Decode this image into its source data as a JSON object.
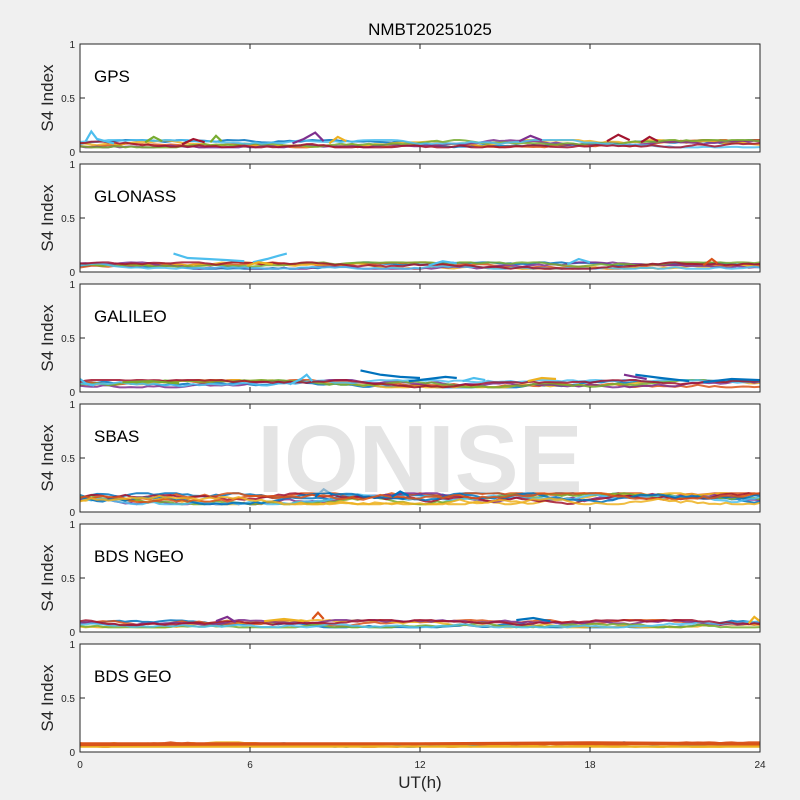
{
  "figure": {
    "title": "NMBT20251025",
    "watermark": "IONISE"
  },
  "chart_data": {
    "type": "line",
    "title": "NMBT20251025",
    "xlabel": "UT(h)",
    "ylabel": "S4 Index",
    "xlim": [
      0,
      24
    ],
    "ylim": [
      0,
      1
    ],
    "x_ticks": [
      0,
      6,
      12,
      18,
      24
    ],
    "y_ticks": [
      0,
      0.5,
      1
    ],
    "grid": false,
    "series_colors": [
      "#0072bd",
      "#d95319",
      "#edb120",
      "#7e2f8e",
      "#77ac30",
      "#4dbeee",
      "#a2142f"
    ],
    "panels": [
      {
        "label": "GPS",
        "description": "Many satellite tracks; S4 mostly 0.03-0.12",
        "tracks": [
          {
            "color": 5,
            "points": [
              [
                0.2,
                0.1
              ],
              [
                0.4,
                0.19
              ],
              [
                0.6,
                0.12
              ],
              [
                1.2,
                0.08
              ]
            ]
          },
          {
            "color": 4,
            "points": [
              [
                2.3,
                0.09
              ],
              [
                2.6,
                0.14
              ],
              [
                2.9,
                0.1
              ]
            ]
          },
          {
            "color": 6,
            "points": [
              [
                3.6,
                0.07
              ],
              [
                4.0,
                0.12
              ],
              [
                4.4,
                0.09
              ]
            ]
          },
          {
            "color": 4,
            "points": [
              [
                4.6,
                0.09
              ],
              [
                4.8,
                0.15
              ],
              [
                5.0,
                0.1
              ]
            ]
          },
          {
            "color": 3,
            "points": [
              [
                7.5,
                0.08
              ],
              [
                7.9,
                0.12
              ],
              [
                8.3,
                0.18
              ],
              [
                8.6,
                0.1
              ]
            ]
          },
          {
            "color": 2,
            "points": [
              [
                8.8,
                0.08
              ],
              [
                9.1,
                0.14
              ],
              [
                9.4,
                0.1
              ]
            ]
          },
          {
            "color": 3,
            "points": [
              [
                15.5,
                0.1
              ],
              [
                15.9,
                0.15
              ],
              [
                16.3,
                0.11
              ]
            ]
          },
          {
            "color": 6,
            "points": [
              [
                18.6,
                0.1
              ],
              [
                19.0,
                0.16
              ],
              [
                19.4,
                0.11
              ]
            ]
          },
          {
            "color": 6,
            "points": [
              [
                19.8,
                0.09
              ],
              [
                20.1,
                0.14
              ],
              [
                20.4,
                0.1
              ]
            ]
          }
        ]
      },
      {
        "label": "GLONASS",
        "description": "Few elevated tracks up to about 0.17",
        "tracks": [
          {
            "color": 5,
            "points": [
              [
                3.3,
                0.17
              ],
              [
                3.8,
                0.13
              ],
              [
                4.5,
                0.12
              ],
              [
                5.2,
                0.11
              ],
              [
                5.8,
                0.1
              ]
            ]
          },
          {
            "color": 5,
            "points": [
              [
                6.1,
                0.09
              ],
              [
                6.6,
                0.12
              ],
              [
                7.0,
                0.15
              ],
              [
                7.3,
                0.17
              ]
            ]
          },
          {
            "color": 2,
            "points": [
              [
                5.9,
                0.06
              ],
              [
                6.3,
                0.09
              ],
              [
                6.8,
                0.07
              ]
            ]
          },
          {
            "color": 5,
            "points": [
              [
                12.3,
                0.06
              ],
              [
                12.8,
                0.1
              ],
              [
                13.3,
                0.08
              ]
            ]
          },
          {
            "color": 5,
            "points": [
              [
                17.2,
                0.07
              ],
              [
                17.6,
                0.12
              ],
              [
                18.0,
                0.09
              ]
            ]
          },
          {
            "color": 1,
            "points": [
              [
                22.0,
                0.06
              ],
              [
                22.3,
                0.12
              ],
              [
                22.5,
                0.08
              ]
            ]
          }
        ]
      },
      {
        "label": "GALILEO",
        "description": "Several arcs near 0.1-0.2",
        "tracks": [
          {
            "color": 5,
            "points": [
              [
                0.0,
                0.12
              ],
              [
                0.2,
                0.08
              ],
              [
                0.5,
                0.06
              ]
            ]
          },
          {
            "color": 4,
            "points": [
              [
                1.5,
                0.09
              ],
              [
                2.5,
                0.1
              ],
              [
                3.5,
                0.08
              ]
            ]
          },
          {
            "color": 5,
            "points": [
              [
                7.4,
                0.07
              ],
              [
                7.8,
                0.12
              ],
              [
                8.0,
                0.16
              ],
              [
                8.2,
                0.1
              ]
            ]
          },
          {
            "color": 0,
            "points": [
              [
                9.9,
                0.2
              ],
              [
                10.6,
                0.16
              ],
              [
                11.3,
                0.14
              ],
              [
                12.0,
                0.13
              ]
            ]
          },
          {
            "color": 0,
            "points": [
              [
                11.6,
                0.1
              ],
              [
                12.3,
                0.12
              ],
              [
                12.9,
                0.14
              ],
              [
                13.3,
                0.13
              ]
            ]
          },
          {
            "color": 5,
            "points": [
              [
                13.5,
                0.1
              ],
              [
                13.9,
                0.13
              ],
              [
                14.3,
                0.11
              ]
            ]
          },
          {
            "color": 2,
            "points": [
              [
                15.8,
                0.1
              ],
              [
                16.3,
                0.13
              ],
              [
                16.8,
                0.12
              ]
            ]
          },
          {
            "color": 3,
            "points": [
              [
                19.2,
                0.16
              ],
              [
                19.6,
                0.14
              ],
              [
                20.0,
                0.12
              ]
            ]
          },
          {
            "color": 0,
            "points": [
              [
                19.6,
                0.16
              ],
              [
                20.5,
                0.13
              ],
              [
                21.5,
                0.1
              ]
            ]
          },
          {
            "color": 0,
            "points": [
              [
                22.0,
                0.09
              ],
              [
                23.0,
                0.12
              ],
              [
                24.0,
                0.11
              ]
            ]
          }
        ]
      },
      {
        "label": "SBAS",
        "description": "Dense band between about 0.07 and 0.18",
        "tracks": [
          {
            "color": 0,
            "points": [
              [
                8.3,
                0.14
              ],
              [
                8.6,
                0.21
              ],
              [
                8.9,
                0.16
              ]
            ]
          },
          {
            "color": 0,
            "points": [
              [
                11.0,
                0.14
              ],
              [
                11.3,
                0.19
              ],
              [
                11.6,
                0.15
              ]
            ]
          }
        ]
      },
      {
        "label": "BDS NGEO",
        "description": "Tracks mostly 0.05-0.12",
        "tracks": [
          {
            "color": 3,
            "points": [
              [
                4.8,
                0.1
              ],
              [
                5.2,
                0.14
              ],
              [
                5.5,
                0.09
              ]
            ]
          },
          {
            "color": 1,
            "points": [
              [
                8.2,
                0.12
              ],
              [
                8.4,
                0.18
              ],
              [
                8.6,
                0.12
              ]
            ]
          },
          {
            "color": 2,
            "points": [
              [
                6.5,
                0.1
              ],
              [
                7.2,
                0.12
              ],
              [
                7.9,
                0.1
              ]
            ]
          },
          {
            "color": 0,
            "points": [
              [
                15.4,
                0.11
              ],
              [
                16.0,
                0.13
              ],
              [
                16.6,
                0.1
              ]
            ]
          },
          {
            "color": 2,
            "points": [
              [
                23.6,
                0.08
              ],
              [
                23.8,
                0.14
              ],
              [
                24.0,
                0.1
              ]
            ]
          }
        ]
      },
      {
        "label": "BDS GEO",
        "description": "Flat lines near 0.05-0.09",
        "tracks": [
          {
            "color": 2,
            "points": [
              [
                0,
                0.05
              ],
              [
                6,
                0.05
              ],
              [
                12,
                0.05
              ],
              [
                18,
                0.05
              ],
              [
                24,
                0.05
              ]
            ]
          },
          {
            "color": 1,
            "points": [
              [
                0,
                0.08
              ],
              [
                6,
                0.08
              ],
              [
                12,
                0.08
              ],
              [
                18,
                0.09
              ],
              [
                24,
                0.08
              ]
            ]
          },
          {
            "color": 1,
            "points": [
              [
                0,
                0.065
              ],
              [
                8,
                0.07
              ],
              [
                16,
                0.075
              ],
              [
                24,
                0.07
              ]
            ]
          }
        ]
      }
    ]
  }
}
